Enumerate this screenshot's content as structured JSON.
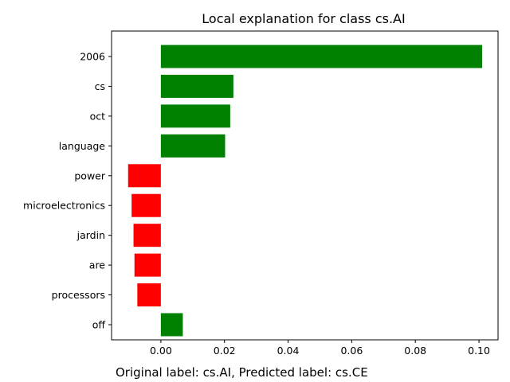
{
  "chart_data": {
    "type": "bar",
    "orientation": "horizontal",
    "title": "Local explanation for class cs.AI",
    "xlabel": "",
    "ylabel": "",
    "categories": [
      "2006",
      "cs",
      "oct",
      "language",
      "power",
      "microelectronics",
      "jardin",
      "are",
      "processors",
      "off"
    ],
    "values": [
      0.101,
      0.0228,
      0.0218,
      0.0202,
      -0.0103,
      -0.0092,
      -0.0086,
      -0.0083,
      -0.0074,
      0.0069
    ],
    "xlim": [
      -0.0155,
      0.106
    ],
    "xticks": [
      "0.00",
      "0.02",
      "0.04",
      "0.06",
      "0.08",
      "0.10"
    ],
    "xtick_values": [
      0.0,
      0.02,
      0.04,
      0.06,
      0.08,
      0.1
    ],
    "grid": false,
    "colors": {
      "positive": "#008000",
      "negative": "#ff0000"
    }
  },
  "caption": "Original label: cs.AI, Predicted label: cs.CE"
}
